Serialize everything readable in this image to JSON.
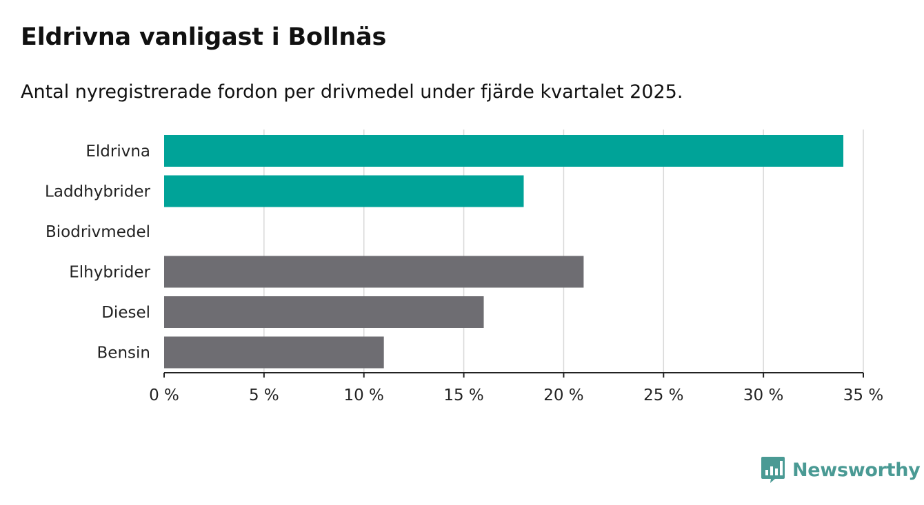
{
  "title": "Eldrivna vanligast i Bollnäs",
  "subtitle": "Antal nyregistrerade fordon per drivmedel under fjärde kvartalet 2025.",
  "brand": {
    "name": "Newsworthy",
    "logo_icon": "bar-chart-speech-bubble-icon"
  },
  "colors": {
    "highlight": "#00A398",
    "other": "#6E6D72",
    "grid": "#D8D8D8",
    "axis": "#222222",
    "brand": "#4A9A94"
  },
  "chart_data": {
    "type": "bar",
    "orientation": "horizontal",
    "categories": [
      "Eldrivna",
      "Laddhybrider",
      "Biodrivmedel",
      "Elhybrider",
      "Diesel",
      "Bensin"
    ],
    "values": [
      34,
      18,
      0,
      21,
      16,
      11
    ],
    "highlighted": [
      true,
      true,
      true,
      false,
      false,
      false
    ],
    "xlim": [
      0,
      35
    ],
    "xticks": [
      0,
      5,
      10,
      15,
      20,
      25,
      30,
      35
    ],
    "xtick_labels": [
      "0 %",
      "5 %",
      "10 %",
      "15 %",
      "20 %",
      "25 %",
      "30 %",
      "35 %"
    ],
    "xlabel": "",
    "ylabel": "",
    "unit": "%",
    "grid": true
  }
}
